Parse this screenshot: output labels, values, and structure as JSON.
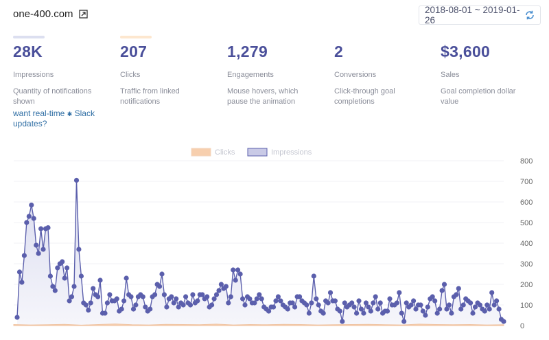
{
  "header": {
    "site": "one-400.com",
    "external_icon": "external-link-icon",
    "date_range": "2018-08-01 ~ 2019-01-26",
    "refresh_icon": "refresh-icon"
  },
  "stats": [
    {
      "value": "28K",
      "label": "Impressions",
      "desc": "Quantity of notifications shown",
      "bar_color": "#dcdff0"
    },
    {
      "value": "207",
      "label": "Clicks",
      "desc": "Traffic from linked notifications",
      "bar_color": "#fde7cf"
    },
    {
      "value": "1,279",
      "label": "Engagements",
      "desc": "Mouse hovers, which pause the animation",
      "bar_color": ""
    },
    {
      "value": "2",
      "label": "Conversions",
      "desc": "Click-through goal completions",
      "bar_color": ""
    },
    {
      "value": "$3,600",
      "label": "Sales",
      "desc": "Goal completion dollar value",
      "bar_color": ""
    }
  ],
  "slack": {
    "prefix": "want real-time",
    "icon": "slack-icon",
    "suffix": "Slack updates?"
  },
  "colors": {
    "accent": "#4a4f9a",
    "impressions_line": "#5b5fac",
    "impressions_fill": "#ecedf7",
    "clicks": "#f7cfae",
    "link": "#2f6ea4"
  },
  "chart_data": {
    "type": "area",
    "legend": [
      "Clicks",
      "Impressions"
    ],
    "legend_position": "top-center",
    "y_ticks": [
      "0",
      "100",
      "200",
      "300",
      "400",
      "500",
      "600",
      "700",
      "800"
    ],
    "ylim": [
      0,
      800
    ],
    "grid": true,
    "series": [
      {
        "name": "Impressions",
        "values": [
          40,
          260,
          210,
          340,
          500,
          530,
          585,
          520,
          390,
          350,
          470,
          370,
          470,
          475,
          240,
          190,
          170,
          280,
          300,
          310,
          230,
          280,
          120,
          140,
          190,
          705,
          370,
          240,
          110,
          100,
          75,
          110,
          180,
          150,
          140,
          220,
          60,
          60,
          110,
          150,
          120,
          120,
          130,
          70,
          80,
          120,
          230,
          150,
          140,
          80,
          100,
          140,
          150,
          140,
          90,
          70,
          80,
          140,
          150,
          200,
          190,
          250,
          150,
          90,
          130,
          140,
          110,
          130,
          90,
          110,
          100,
          140,
          110,
          100,
          150,
          110,
          120,
          150,
          150,
          130,
          140,
          90,
          100,
          130,
          150,
          170,
          200,
          180,
          190,
          110,
          140,
          270,
          220,
          270,
          250,
          130,
          100,
          140,
          130,
          110,
          110,
          130,
          150,
          130,
          90,
          80,
          70,
          90,
          90,
          120,
          140,
          120,
          100,
          90,
          80,
          110,
          110,
          90,
          140,
          140,
          120,
          110,
          100,
          60,
          110,
          240,
          130,
          100,
          70,
          60,
          120,
          110,
          160,
          120,
          120,
          80,
          70,
          20,
          110,
          90,
          100,
          110,
          90,
          60,
          120,
          80,
          60,
          110,
          90,
          70,
          110,
          140,
          80,
          110,
          60,
          70,
          70,
          130,
          100,
          100,
          110,
          160,
          60,
          20,
          110,
          90,
          100,
          120,
          80,
          100,
          100,
          70,
          50,
          90,
          130,
          140,
          120,
          60,
          80,
          170,
          200,
          80,
          100,
          60,
          140,
          150,
          180,
          80,
          100,
          130,
          120,
          110,
          60,
          90,
          110,
          100,
          80,
          70,
          100,
          80,
          160,
          100,
          120,
          80,
          30,
          20
        ]
      },
      {
        "name": "Clicks",
        "values": [
          5,
          3,
          4,
          6,
          2,
          5,
          8,
          4,
          3,
          6,
          5,
          4,
          7,
          3,
          5,
          4,
          6,
          5,
          3,
          4,
          5,
          6,
          4,
          3,
          7,
          5,
          4,
          5,
          3,
          4
        ]
      }
    ]
  }
}
